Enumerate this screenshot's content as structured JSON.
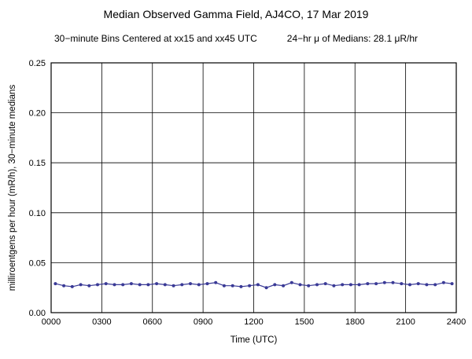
{
  "title": "Median Observed Gamma Field, AJ4CO, 17 Mar 2019",
  "subtitle_left": "30−minute Bins Centered at xx15 and xx45 UTC",
  "subtitle_right": "24−hr μ of Medians: 28.1 μR/hr",
  "chart_data": {
    "type": "line",
    "title": "Median Observed Gamma Field, AJ4CO, 17 Mar 2019",
    "xlabel": "Time (UTC)",
    "ylabel": "milliroentgens per hour (mR/h), 30−minute medians",
    "xlim": [
      0,
      24
    ],
    "ylim": [
      0,
      0.25
    ],
    "grid": true,
    "legend": "none",
    "line_color": "#3a3a96",
    "xticks": {
      "values": [
        0,
        3,
        6,
        9,
        12,
        15,
        18,
        21,
        24
      ],
      "labels": [
        "0000",
        "0300",
        "0600",
        "0900",
        "1200",
        "1500",
        "1800",
        "2100",
        "2400"
      ]
    },
    "yticks": {
      "values": [
        0.0,
        0.05,
        0.1,
        0.15,
        0.2,
        0.25
      ],
      "labels": [
        "0.00",
        "0.05",
        "0.10",
        "0.15",
        "0.20",
        "0.25"
      ]
    },
    "x": [
      0.25,
      0.75,
      1.25,
      1.75,
      2.25,
      2.75,
      3.25,
      3.75,
      4.25,
      4.75,
      5.25,
      5.75,
      6.25,
      6.75,
      7.25,
      7.75,
      8.25,
      8.75,
      9.25,
      9.75,
      10.25,
      10.75,
      11.25,
      11.75,
      12.25,
      12.75,
      13.25,
      13.75,
      14.25,
      14.75,
      15.25,
      15.75,
      16.25,
      16.75,
      17.25,
      17.75,
      18.25,
      18.75,
      19.25,
      19.75,
      20.25,
      20.75,
      21.25,
      21.75,
      22.25,
      22.75,
      23.25,
      23.75
    ],
    "values": [
      0.029,
      0.027,
      0.026,
      0.028,
      0.027,
      0.028,
      0.029,
      0.028,
      0.028,
      0.029,
      0.028,
      0.028,
      0.029,
      0.028,
      0.027,
      0.028,
      0.029,
      0.028,
      0.029,
      0.03,
      0.027,
      0.027,
      0.026,
      0.027,
      0.028,
      0.025,
      0.028,
      0.027,
      0.03,
      0.028,
      0.027,
      0.028,
      0.029,
      0.027,
      0.028,
      0.028,
      0.028,
      0.029,
      0.029,
      0.03,
      0.03,
      0.029,
      0.028,
      0.029,
      0.028,
      0.028,
      0.03,
      0.029
    ],
    "mean_of_medians_uR_hr": 28.1
  }
}
